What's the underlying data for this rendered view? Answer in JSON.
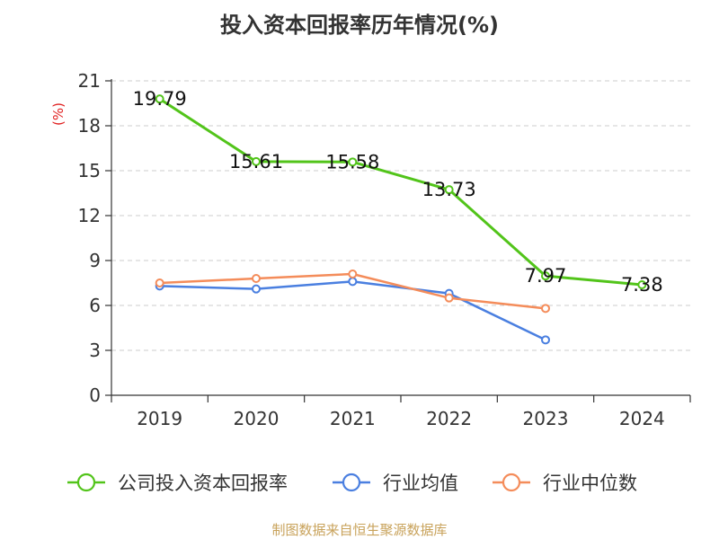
{
  "chart_data": {
    "type": "line",
    "title": "投入资本回报率历年情况(%)",
    "ylabel": "(%)",
    "xlabel": "",
    "categories": [
      "2019",
      "2020",
      "2021",
      "2022",
      "2023",
      "2024"
    ],
    "ylim": [
      0,
      21
    ],
    "yticks": [
      0,
      3,
      6,
      9,
      12,
      15,
      18,
      21
    ],
    "grid": true,
    "legend_position": "bottom",
    "series": [
      {
        "name": "公司投入资本回报率",
        "color": "#52c41a",
        "values": [
          19.79,
          15.61,
          15.58,
          13.73,
          7.97,
          7.38
        ],
        "labels": [
          "19.79",
          "15.61",
          "15.58",
          "13.73",
          "7.97",
          "7.38"
        ]
      },
      {
        "name": "行业均值",
        "color": "#4a7fe0",
        "values": [
          7.3,
          7.1,
          7.6,
          6.8,
          3.7,
          null
        ]
      },
      {
        "name": "行业中位数",
        "color": "#f48c5a",
        "values": [
          7.5,
          7.8,
          8.1,
          6.5,
          5.8,
          null
        ]
      }
    ]
  },
  "footer": {
    "text": "制图数据来自恒生聚源数据库",
    "color": "#c8a25a"
  },
  "colors": {
    "axis": "#333333",
    "grid": "#cccccc",
    "unit": "#e02020"
  }
}
